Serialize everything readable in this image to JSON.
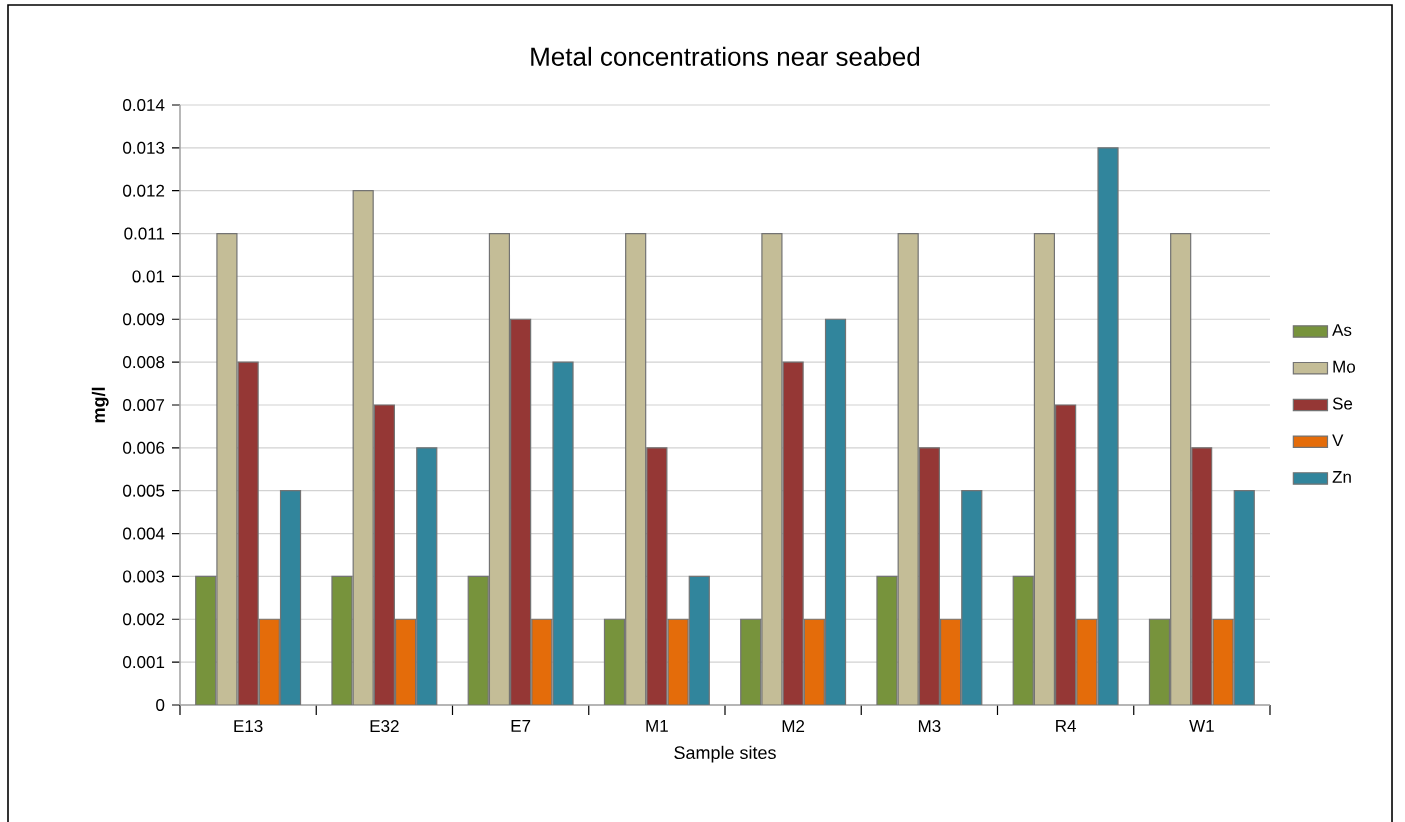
{
  "chart_data": {
    "type": "bar",
    "title": "Metal concentrations near seabed",
    "xlabel": "Sample sites",
    "ylabel": "mg/l",
    "categories": [
      "E13",
      "E32",
      "E7",
      "M1",
      "M2",
      "M3",
      "R4",
      "W1"
    ],
    "series": [
      {
        "name": "As",
        "color": "#77933c",
        "values": [
          0.003,
          0.003,
          0.003,
          0.002,
          0.002,
          0.003,
          0.003,
          0.002
        ]
      },
      {
        "name": "Mo",
        "color": "#c4bd97",
        "values": [
          0.011,
          0.012,
          0.011,
          0.011,
          0.011,
          0.011,
          0.011,
          0.011
        ]
      },
      {
        "name": "Se",
        "color": "#953735",
        "values": [
          0.008,
          0.007,
          0.009,
          0.006,
          0.008,
          0.006,
          0.007,
          0.006
        ]
      },
      {
        "name": "V",
        "color": "#e46c0a",
        "values": [
          0.002,
          0.002,
          0.002,
          0.002,
          0.002,
          0.002,
          0.002,
          0.002
        ]
      },
      {
        "name": "Zn",
        "color": "#31859c",
        "values": [
          0.005,
          0.006,
          0.008,
          0.003,
          0.009,
          0.005,
          0.013,
          0.005
        ]
      }
    ],
    "ylim": [
      0,
      0.014
    ],
    "yticks": [
      0,
      0.001,
      0.002,
      0.003,
      0.004,
      0.005,
      0.006,
      0.007,
      0.008,
      0.009,
      0.01,
      0.011,
      0.012,
      0.013,
      0.014
    ],
    "grid": "y",
    "legend": "right"
  }
}
